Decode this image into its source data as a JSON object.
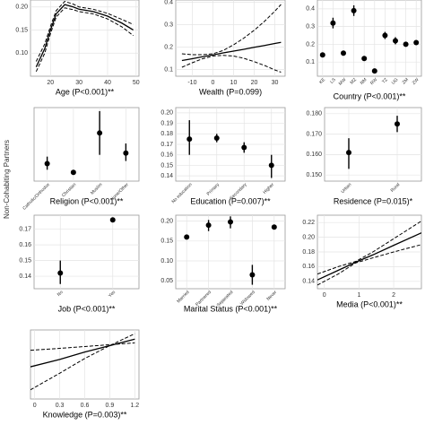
{
  "y_axis_label": "Non-Cohabiting Partners",
  "chart_data": [
    {
      "type": "line",
      "title": "Age (P<0.001)**",
      "x": [
        15,
        18,
        20,
        22,
        25,
        28,
        30,
        35,
        40,
        45,
        49
      ],
      "series": [
        {
          "values": [
            0.07,
            0.11,
            0.15,
            0.185,
            0.205,
            0.2,
            0.195,
            0.19,
            0.18,
            0.165,
            0.15
          ],
          "dash": false
        },
        {
          "values": [
            0.06,
            0.1,
            0.142,
            0.178,
            0.198,
            0.194,
            0.19,
            0.185,
            0.174,
            0.157,
            0.138
          ],
          "dash": true
        },
        {
          "values": [
            0.082,
            0.12,
            0.158,
            0.192,
            0.212,
            0.206,
            0.2,
            0.195,
            0.186,
            0.173,
            0.162
          ],
          "dash": true
        }
      ],
      "xlim": [
        13,
        51
      ],
      "xticks": [
        20,
        30,
        40,
        50
      ],
      "ylim": [
        0.05,
        0.215
      ],
      "yticks": [
        {
          "value": 0.1,
          "label": "0.10"
        },
        0.15,
        {
          "value": 0.2,
          "label": "0.20"
        }
      ]
    },
    {
      "type": "line",
      "title": "Wealth (P=0.099)",
      "x": [
        -15,
        -10,
        -5,
        0,
        5,
        10,
        15,
        20,
        25,
        30,
        33
      ],
      "series": [
        {
          "values": [
            0.14,
            0.148,
            0.157,
            0.165,
            0.174,
            0.182,
            0.19,
            0.199,
            0.207,
            0.216,
            0.221
          ],
          "dash": false
        },
        {
          "values": [
            0.11,
            0.13,
            0.148,
            0.16,
            0.163,
            0.16,
            0.15,
            0.135,
            0.118,
            0.098,
            0.088
          ],
          "dash": true
        },
        {
          "values": [
            0.17,
            0.166,
            0.166,
            0.17,
            0.185,
            0.21,
            0.24,
            0.275,
            0.315,
            0.36,
            0.39
          ],
          "dash": true
        }
      ],
      "xlim": [
        -18,
        35
      ],
      "xticks": [
        -10,
        0,
        10,
        20,
        30
      ],
      "ylim": [
        0.07,
        0.41
      ],
      "yticks": [
        0.1,
        0.2,
        0.3,
        0.4
      ]
    },
    {
      "type": "pointrange",
      "title": "Country (P<0.001)**",
      "categories": [
        "KE",
        "LS",
        "MW",
        "MZ",
        "NM",
        "RW",
        "TZ",
        "UG",
        "ZM",
        "ZW"
      ],
      "values": [
        0.14,
        0.32,
        0.15,
        0.39,
        0.12,
        0.05,
        0.25,
        0.22,
        0.2,
        0.21
      ],
      "lower": [
        0.13,
        0.29,
        0.14,
        0.36,
        0.11,
        0.04,
        0.23,
        0.2,
        0.19,
        0.2
      ],
      "upper": [
        0.15,
        0.35,
        0.16,
        0.42,
        0.13,
        0.06,
        0.27,
        0.24,
        0.21,
        0.22
      ],
      "ylim": [
        0.02,
        0.45
      ],
      "yticks": [
        0.1,
        0.2,
        0.3,
        0.4
      ]
    },
    {
      "type": "pointrange",
      "title": "Religion (P<0.001)**",
      "categories": [
        "Catholic/Orthodox",
        "Christian",
        "Muslim",
        "None/Other"
      ],
      "values": [
        0.172,
        0.162,
        0.207,
        0.184
      ],
      "lower": [
        0.165,
        0.16,
        0.182,
        0.175
      ],
      "upper": [
        0.18,
        0.164,
        0.232,
        0.195
      ],
      "ylim": [
        0.152,
        0.236
      ]
    },
    {
      "type": "pointrange",
      "title": "Education (P=0.007)**",
      "categories": [
        "No education",
        "Primary",
        "Secondary",
        "Higher"
      ],
      "values": [
        0.175,
        0.176,
        0.167,
        0.15
      ],
      "lower": [
        0.16,
        0.172,
        0.162,
        0.138
      ],
      "upper": [
        0.193,
        0.18,
        0.172,
        0.16
      ],
      "ylim": [
        0.135,
        0.205
      ],
      "yticks": [
        0.14,
        0.15,
        0.16,
        0.17,
        0.18,
        0.19,
        {
          "value": 0.2,
          "label": "0.20"
        }
      ]
    },
    {
      "type": "pointrange",
      "title": "Residence (P=0.015)*",
      "categories": [
        "Urban",
        "Rural"
      ],
      "values": [
        0.161,
        0.175
      ],
      "lower": [
        0.153,
        0.171
      ],
      "upper": [
        0.168,
        0.179
      ],
      "ylim": [
        0.147,
        0.183
      ],
      "yticks": [
        {
          "value": 0.15,
          "label": "0.150"
        },
        {
          "value": 0.16,
          "label": "0.160"
        },
        {
          "value": 0.17,
          "label": "0.170"
        },
        {
          "value": 0.18,
          "label": "0.180"
        }
      ]
    },
    {
      "type": "pointrange",
      "title": "Job (P<0.001)**",
      "categories": [
        "No",
        "Yes"
      ],
      "values": [
        0.142,
        0.176
      ],
      "lower": [
        0.135,
        0.175
      ],
      "upper": [
        0.15,
        0.177
      ],
      "ylim": [
        0.132,
        0.179
      ],
      "yticks": [
        0.14,
        0.15,
        0.16,
        0.17
      ]
    },
    {
      "type": "pointrange",
      "title": "Marital Status (P<0.001)**",
      "categories": [
        "Married",
        "Partnered",
        "Separated",
        "Widowed",
        "Never"
      ],
      "values": [
        0.16,
        0.19,
        0.198,
        0.065,
        0.185
      ],
      "lower": [
        0.155,
        0.175,
        0.182,
        0.04,
        0.179
      ],
      "upper": [
        0.165,
        0.203,
        0.212,
        0.09,
        0.191
      ],
      "ylim": [
        0.03,
        0.215
      ],
      "yticks": [
        0.05,
        {
          "value": 0.1,
          "label": "0.10"
        },
        0.15,
        {
          "value": 0.2,
          "label": "0.20"
        }
      ]
    },
    {
      "type": "line",
      "title": "Media (P<0.001)**",
      "x": [
        -0.2,
        0.4,
        0.9,
        1.4,
        2,
        2.8
      ],
      "series": [
        {
          "values": [
            0.142,
            0.155,
            0.166,
            0.176,
            0.189,
            0.206
          ],
          "dash": false
        },
        {
          "values": [
            0.135,
            0.15,
            0.165,
            0.172,
            0.18,
            0.19
          ],
          "dash": true
        },
        {
          "values": [
            0.15,
            0.16,
            0.167,
            0.18,
            0.198,
            0.222
          ],
          "dash": true
        }
      ],
      "xlim": [
        -0.2,
        2.8
      ],
      "xticks": [
        0,
        1,
        2
      ],
      "ylim": [
        0.13,
        0.23
      ],
      "yticks": [
        0.14,
        0.16,
        0.18,
        {
          "value": 0.2,
          "label": "0.20"
        },
        0.22
      ]
    },
    {
      "type": "line",
      "title": "Knowledge (P=0.003)**",
      "x": [
        -0.05,
        0.3,
        0.6,
        0.9,
        1.2
      ],
      "series": [
        {
          "values": [
            0.145,
            0.153,
            0.161,
            0.168,
            0.175
          ],
          "dash": false
        },
        {
          "values": [
            0.12,
            0.138,
            0.154,
            0.168,
            0.181
          ],
          "dash": true
        },
        {
          "values": [
            0.163,
            0.165,
            0.167,
            0.169,
            0.171
          ],
          "dash": true
        }
      ],
      "xlim": [
        -0.05,
        1.25
      ],
      "xticks": [
        0,
        0.3,
        0.6,
        0.9,
        1.2
      ],
      "ylim": [
        0.11,
        0.185
      ]
    }
  ]
}
